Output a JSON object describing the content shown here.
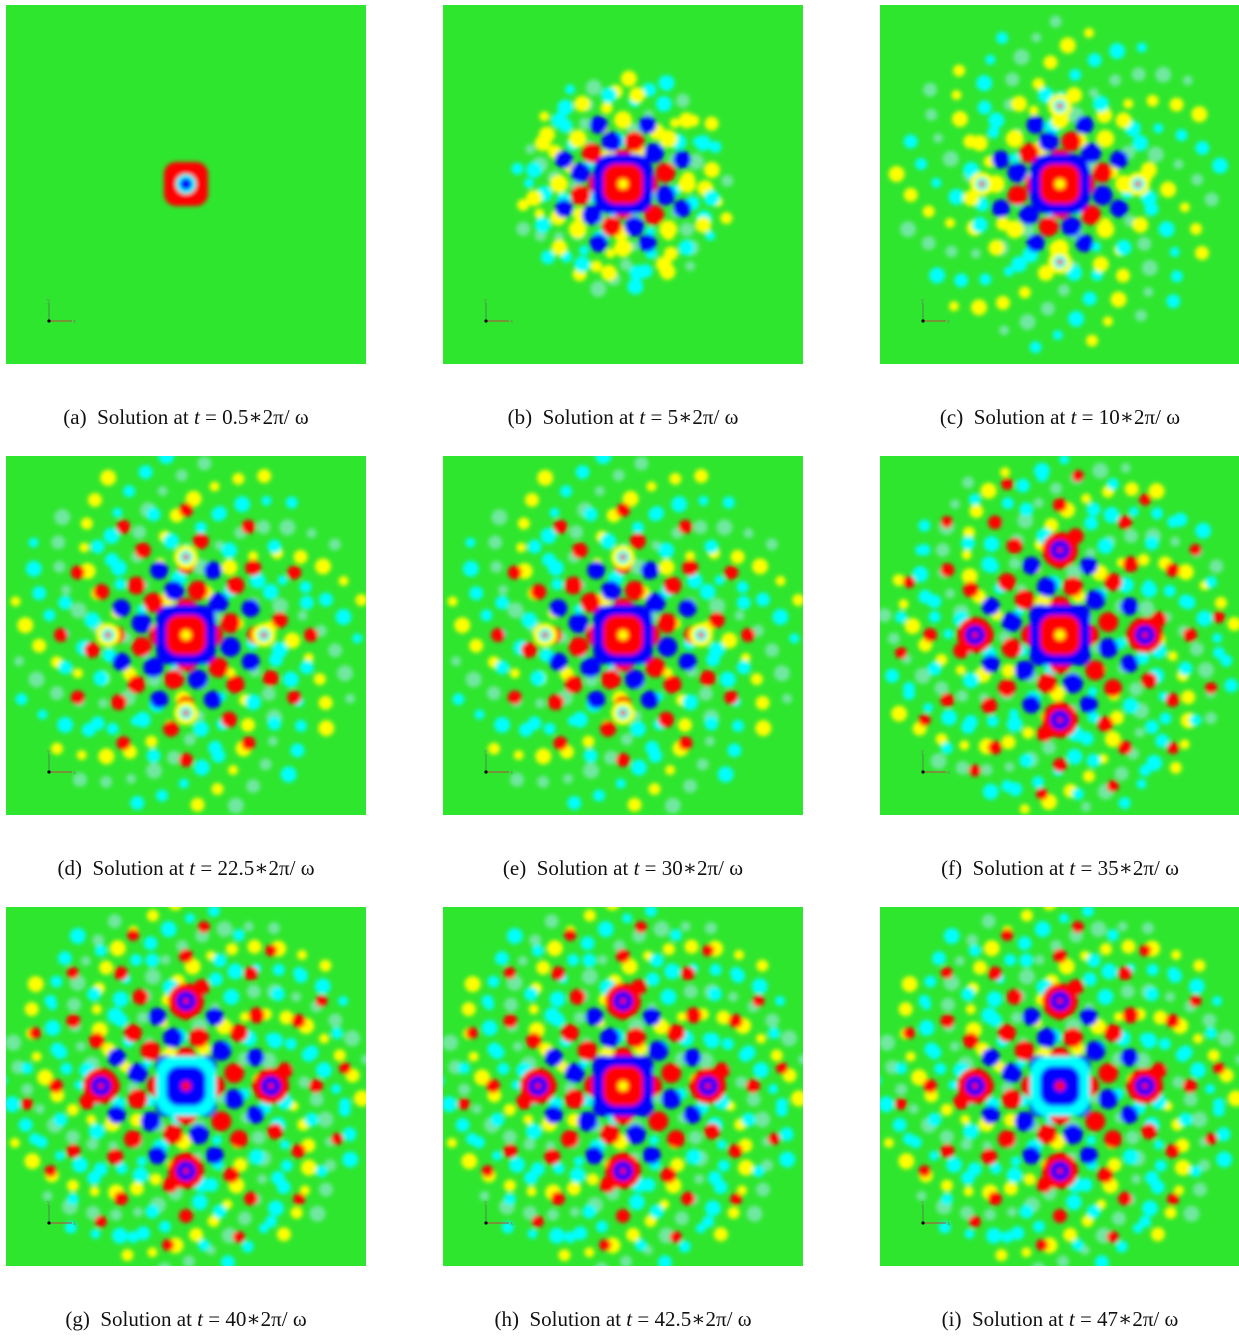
{
  "figure": {
    "colormap": [
      "#0000ff",
      "#00ffff",
      "#00ff00",
      "#ffff00",
      "#ff0000"
    ],
    "background_color": "#2ee62e",
    "axes_triad_labels": [
      "y",
      "x"
    ],
    "panels": [
      {
        "label": "(a)",
        "text": "Solution at",
        "t_var": "t",
        "eq": " = ",
        "value": "0.5",
        "op": "∗",
        "factor": "2π/ ω",
        "stage": 0,
        "center": "red"
      },
      {
        "label": "(b)",
        "text": "Solution at",
        "t_var": "t",
        "eq": " = ",
        "value": "5",
        "op": "∗",
        "factor": "2π/ ω",
        "stage": 1,
        "center": "red"
      },
      {
        "label": "(c)",
        "text": "Solution at",
        "t_var": "t",
        "eq": " = ",
        "value": "10",
        "op": "∗",
        "factor": "2π/ ω",
        "stage": 2,
        "center": "red"
      },
      {
        "label": "(d)",
        "text": "Solution at",
        "t_var": "t",
        "eq": " = ",
        "value": "22.5",
        "op": "∗",
        "factor": "2π/ ω",
        "stage": 3,
        "center": "red"
      },
      {
        "label": "(e)",
        "text": "Solution at",
        "t_var": "t",
        "eq": " = ",
        "value": "30",
        "op": "∗",
        "factor": "2π/ ω",
        "stage": 3,
        "center": "red"
      },
      {
        "label": "(f)",
        "text": "Solution at",
        "t_var": "t",
        "eq": " = ",
        "value": "35",
        "op": "∗",
        "factor": "2π/ ω",
        "stage": 4,
        "center": "red"
      },
      {
        "label": "(g)",
        "text": "Solution at",
        "t_var": "t",
        "eq": " = ",
        "value": "40",
        "op": "∗",
        "factor": "2π/ ω",
        "stage": 5,
        "center": "blue"
      },
      {
        "label": "(h)",
        "text": "Solution at",
        "t_var": "t",
        "eq": " = ",
        "value": "42.5",
        "op": "∗",
        "factor": "2π/ ω",
        "stage": 5,
        "center": "red"
      },
      {
        "label": "(i)",
        "text": "Solution at",
        "t_var": "t",
        "eq": " = ",
        "value": "47",
        "op": "∗",
        "factor": "2π/ ω",
        "stage": 5,
        "center": "blue"
      }
    ]
  }
}
